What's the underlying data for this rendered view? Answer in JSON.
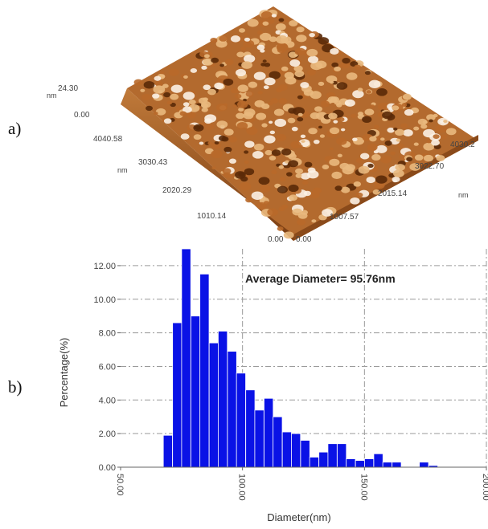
{
  "panels": {
    "a_label": "a)",
    "b_label": "b)"
  },
  "afm": {
    "z_unit": "nm",
    "z_max": "24.30",
    "z_min": "0.00",
    "y_unit": "nm",
    "y_ticks": [
      "4040.58",
      "3030.43",
      "2020.29",
      "1010.14",
      "0.00"
    ],
    "x_unit": "nm",
    "x_ticks": [
      "0.00",
      "1007.57",
      "2015.14",
      "3022.70",
      "4030.2"
    ],
    "colors": {
      "dark": "#5a2a08",
      "mid": "#b8692a",
      "light": "#e9b97e",
      "peak": "#fbf1e4"
    }
  },
  "chart_data": {
    "type": "bar",
    "annotation": "Average Diameter= 95.76nm",
    "xlabel": "Diameter(nm)",
    "ylabel": "Percentage(%)",
    "xlim": [
      50,
      200
    ],
    "ylim": [
      0,
      13
    ],
    "x_ticks": [
      "50.00",
      "100.00",
      "150.00",
      "200.00"
    ],
    "y_ticks": [
      "0.00",
      "2.00",
      "4.00",
      "6.00",
      "8.00",
      "10.00",
      "12.00"
    ],
    "bar_width": 3.75,
    "bar_color": "#0a12e6",
    "grid": true,
    "x": [
      69.4,
      73.2,
      76.9,
      80.7,
      84.4,
      88.2,
      91.9,
      95.7,
      99.4,
      103.2,
      106.9,
      110.7,
      114.4,
      118.2,
      121.9,
      125.7,
      129.4,
      133.2,
      136.9,
      140.7,
      144.4,
      148.2,
      151.9,
      155.7,
      159.4,
      163.2,
      166.9,
      170.7,
      174.4,
      178.2,
      181.9,
      185.7,
      189.4,
      193.2,
      196.9,
      200.7
    ],
    "values": [
      1.9,
      8.6,
      13.0,
      9.0,
      11.5,
      7.4,
      8.1,
      6.9,
      5.6,
      4.6,
      3.4,
      4.1,
      3.0,
      2.1,
      2.0,
      1.6,
      0.6,
      0.9,
      1.4,
      1.4,
      0.5,
      0.4,
      0.5,
      0.8,
      0.3,
      0.3,
      0.0,
      0.0,
      0.3,
      0.1,
      0.0,
      0.0,
      0.0,
      0.0,
      0.0,
      0.0
    ]
  }
}
